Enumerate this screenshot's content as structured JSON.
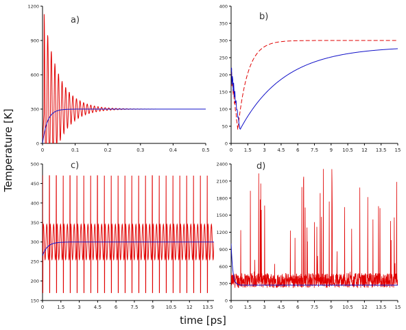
{
  "figure": {
    "ylabel": "Temperature [K]",
    "xlabel": "time [ps]"
  },
  "chart_data": [
    {
      "type": "line",
      "panel_label": "a)",
      "xlim": [
        0,
        0.5
      ],
      "ylim": [
        0,
        1200
      ],
      "xticks": [
        "0",
        "0.1",
        "0.2",
        "0.3",
        "0.4",
        "0.5"
      ],
      "xtick_values": [
        0,
        0.1,
        0.2,
        0.3,
        0.4,
        0.5
      ],
      "yticks": [
        "0",
        "300",
        "600",
        "900",
        "1200"
      ],
      "ytick_values": [
        0,
        300,
        600,
        900,
        1200
      ],
      "series": [
        {
          "color": "#e00000",
          "pattern": "damped-oscillation",
          "settle": 300,
          "amplitude": 830,
          "t0": 0.005,
          "decay": 0.045,
          "period": 0.011
        },
        {
          "color": "#1010c8",
          "pattern": "smooth-rise",
          "settle": 300,
          "start": 0,
          "tau": 0.015
        }
      ]
    },
    {
      "type": "line",
      "panel_label": "b)",
      "xlim": [
        0,
        15
      ],
      "ylim": [
        0,
        400
      ],
      "xticks": [
        "0",
        "1.5",
        "3",
        "4.5",
        "6",
        "7.5",
        "9",
        "10.5",
        "12",
        "13.5",
        "15"
      ],
      "xtick_values": [
        0,
        1.5,
        3,
        4.5,
        6,
        7.5,
        9,
        10.5,
        12,
        13.5,
        15
      ],
      "yticks": [
        "0",
        "50",
        "100",
        "150",
        "200",
        "250",
        "300",
        "350",
        "400"
      ],
      "ytick_values": [
        0,
        50,
        100,
        150,
        200,
        250,
        300,
        350,
        400
      ],
      "series": [
        {
          "color": "#e00000",
          "dashed": true,
          "pattern": "dip-then-recover",
          "settle": 300,
          "min": 40,
          "tmin": 0.6,
          "tau": 0.9
        },
        {
          "color": "#1010c8",
          "pattern": "dip-then-recover",
          "settle": 283,
          "min": 40,
          "tmin": 0.8,
          "tau": 4.0
        }
      ]
    },
    {
      "type": "line",
      "panel_label": "c)",
      "xlim": [
        0,
        14
      ],
      "ylim": [
        150,
        500
      ],
      "xticks": [
        "0",
        "1.5",
        "3",
        "4.5",
        "6",
        "7.5",
        "9",
        "10.5",
        "12",
        "13.5"
      ],
      "xtick_values": [
        0,
        1.5,
        3,
        4.5,
        6,
        7.5,
        9,
        10.5,
        12,
        13.5
      ],
      "yticks": [
        "150",
        "200",
        "250",
        "300",
        "350",
        "400",
        "450",
        "500"
      ],
      "ytick_values": [
        150,
        200,
        250,
        300,
        350,
        400,
        450,
        500
      ],
      "series": [
        {
          "color": "#e00000",
          "pattern": "periodic-spikes",
          "center": 300,
          "high": 470,
          "low": 170,
          "period": 0.56
        },
        {
          "color": "#1010c8",
          "pattern": "smooth-rise",
          "settle": 300,
          "start": 265,
          "tau": 0.4
        }
      ]
    },
    {
      "type": "line",
      "panel_label": "d)",
      "xlim": [
        0,
        15
      ],
      "ylim": [
        0,
        2400
      ],
      "xticks": [
        "0",
        "1.5",
        "3",
        "4.5",
        "6",
        "7.5",
        "9",
        "10.5",
        "12",
        "13.5",
        "15"
      ],
      "xtick_values": [
        0,
        1.5,
        3,
        4.5,
        6,
        7.5,
        9,
        10.5,
        12,
        13.5,
        15
      ],
      "yticks": [
        "0",
        "300",
        "600",
        "900",
        "1200",
        "1500",
        "1800",
        "2100",
        "2400"
      ],
      "ytick_values": [
        0,
        300,
        600,
        900,
        1200,
        1500,
        1800,
        2100,
        2400
      ],
      "series": [
        {
          "color": "#e00000",
          "pattern": "noisy",
          "base": 300,
          "max": 2350
        },
        {
          "color": "#1010c8",
          "pattern": "smooth-rise",
          "settle": 270,
          "start": 1000,
          "tau": 0.15
        }
      ]
    }
  ]
}
